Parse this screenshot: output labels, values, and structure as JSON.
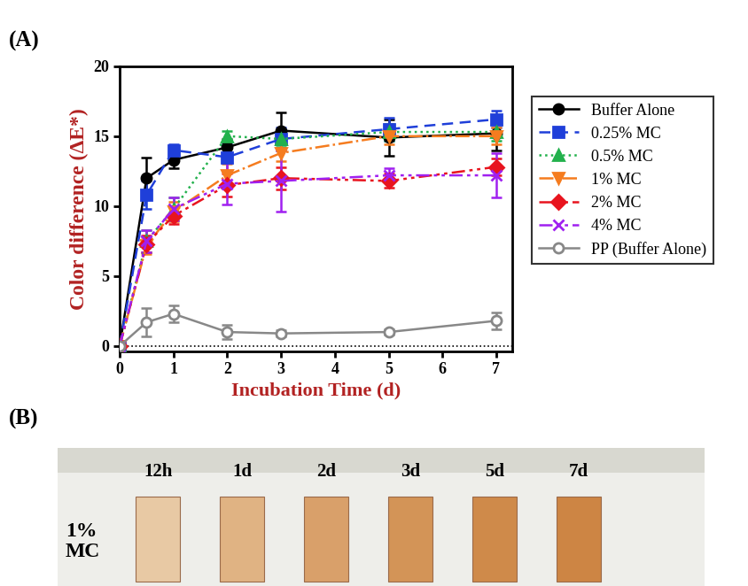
{
  "panel_labels": [
    "(A)",
    "(B)"
  ],
  "chart_data": {
    "type": "line",
    "x_label": "Incubation Time (d)",
    "y_label": "Color difference (ΔE*)",
    "xlim": [
      0,
      7.3
    ],
    "ylim": [
      -0.4,
      20
    ],
    "xticks": [
      0,
      1,
      2,
      3,
      4,
      5,
      6,
      7
    ],
    "yticks": [
      0,
      5,
      10,
      15,
      20
    ],
    "reference_line": 0,
    "legend": "center left",
    "grid": false,
    "x": [
      0,
      0.5,
      1,
      2,
      3,
      5,
      7
    ],
    "series": [
      {
        "name": "Buffer Alone",
        "color": "#000000",
        "marker": "circle",
        "line_style": "solid",
        "values": [
          0,
          12.0,
          13.3,
          14.2,
          15.4,
          14.9,
          15.2
        ],
        "errors": [
          0,
          1.5,
          0.6,
          0.6,
          1.3,
          1.3,
          1.2
        ]
      },
      {
        "name": "0.25% MC",
        "color": "#1f3fd9",
        "marker": "square",
        "line_style": "dashed",
        "values": [
          0,
          10.8,
          14.0,
          13.5,
          14.8,
          15.5,
          16.2
        ],
        "errors": [
          0,
          1.0,
          0.4,
          1.0,
          0.8,
          0.8,
          0.6
        ]
      },
      {
        "name": "0.5% MC",
        "color": "#22b14c",
        "marker": "triangle_up",
        "line_style": "dotted",
        "values": [
          0,
          7.5,
          9.8,
          15.0,
          14.8,
          15.3,
          15.3
        ],
        "errors": [
          0,
          0.8,
          0.8,
          0.4,
          0.6,
          0.6,
          0.6
        ]
      },
      {
        "name": "1% MC",
        "color": "#f57c1f",
        "marker": "triangle_down",
        "line_style": "dashdot",
        "values": [
          0,
          7.2,
          9.6,
          12.2,
          13.8,
          15.0,
          15.0
        ],
        "errors": [
          0,
          0.6,
          0.7,
          0.8,
          0.6,
          0.6,
          0.6
        ]
      },
      {
        "name": "2% MC",
        "color": "#e8141e",
        "marker": "diamond",
        "line_style": "dashdotdot",
        "values": [
          0,
          7.3,
          9.3,
          11.5,
          12.0,
          11.8,
          12.8
        ],
        "errors": [
          0,
          0.6,
          0.6,
          0.8,
          0.8,
          0.5,
          0.6
        ]
      },
      {
        "name": "4% MC",
        "color": "#a020f0",
        "marker": "x",
        "line_style": "dashdotdot",
        "values": [
          0,
          7.5,
          9.8,
          11.6,
          11.8,
          12.2,
          12.2
        ],
        "errors": [
          0,
          0.8,
          0.8,
          1.5,
          2.2,
          0.5,
          1.6
        ]
      },
      {
        "name": "PP (Buffer Alone)",
        "color": "#888888",
        "marker": "open_circle",
        "line_style": "solid",
        "values": [
          0,
          1.7,
          2.3,
          1.0,
          0.9,
          1.0,
          1.8
        ],
        "errors": [
          0,
          1.0,
          0.6,
          0.5,
          0.2,
          0.2,
          0.6
        ]
      }
    ]
  },
  "photo": {
    "row_label": "1%\nMC",
    "strip_labels": [
      "12h",
      "1d",
      "2d",
      "3d",
      "5d",
      "7d"
    ]
  }
}
